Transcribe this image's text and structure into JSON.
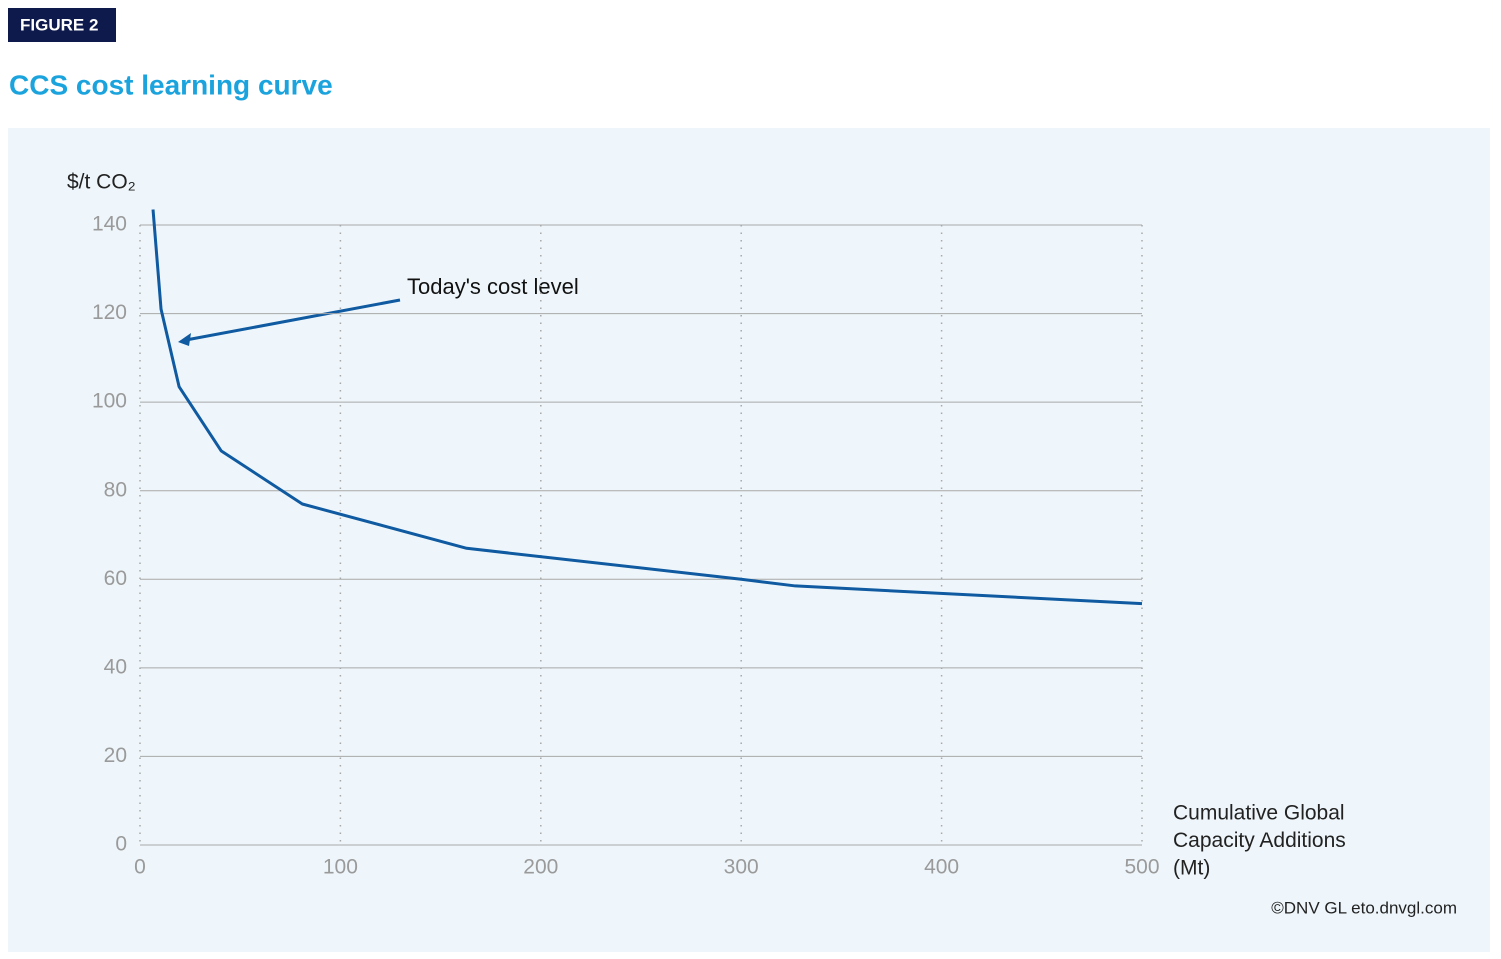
{
  "figure_label": "FIGURE 2",
  "chart_data": {
    "type": "line",
    "title": "CCS cost learning curve",
    "y_label": "$/t CO₂",
    "x_label": [
      "Cumulative Global",
      "Capacity Additions",
      "(Mt)"
    ],
    "annotation": "Today's cost level",
    "source": "©DNV GL  eto.dnvgl.com",
    "x": [
      6.5,
      10.5,
      19.5,
      40.5,
      81,
      163,
      300,
      327,
      500
    ],
    "values": [
      143.5,
      121,
      103.5,
      89,
      77,
      67,
      60,
      58.5,
      54.5
    ],
    "color": "#0f5aa0",
    "xlim": [
      0,
      500
    ],
    "xticks": [
      0,
      100,
      200,
      300,
      400,
      500
    ],
    "ylim": [
      0,
      140
    ],
    "yticks": [
      0,
      20,
      40,
      60,
      80,
      100,
      120,
      140
    ],
    "grid": true
  }
}
